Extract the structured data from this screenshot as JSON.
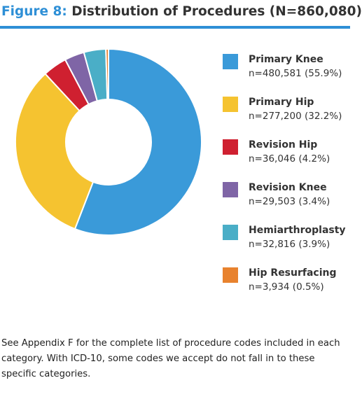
{
  "chart_data": {
    "type": "donut",
    "title_prefix": "Figure 8:",
    "title": "Distribution of Procedures (N=860,080)",
    "categories": [
      "Primary Knee",
      "Primary Hip",
      "Revision Hip",
      "Revision Knee",
      "Hemiarthroplasty",
      "Hip Resurfacing"
    ],
    "values": [
      480581,
      277200,
      36046,
      29503,
      32816,
      3934
    ],
    "value_labels": [
      "n=480,581 (55.9%)",
      "n=277,200 (32.2%)",
      "n=36,046 (4.2%)",
      "n=29,503 (3.4%)",
      "n=32,816 (3.9%)",
      "n=3,934 (0.5%)"
    ],
    "colors": [
      "#3a9ad9",
      "#f5c330",
      "#cf2030",
      "#7f65a6",
      "#4aaec7",
      "#e8822e"
    ],
    "footnote": "See Appendix F for the complete list of procedure codes included in each category. With ICD-10, some codes we accept do not fall in to these specific categories."
  }
}
